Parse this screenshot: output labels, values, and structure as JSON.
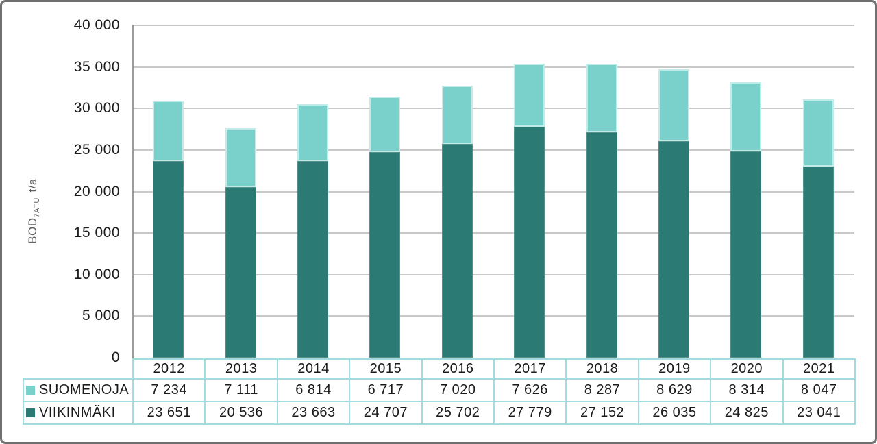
{
  "chart_data": {
    "type": "bar",
    "stacked": true,
    "categories": [
      "2012",
      "2013",
      "2014",
      "2015",
      "2016",
      "2017",
      "2018",
      "2019",
      "2020",
      "2021"
    ],
    "series": [
      {
        "name": "SUOMENOJA",
        "color": "#7ad1cb",
        "values": [
          7234,
          7111,
          6814,
          6717,
          7020,
          7626,
          8287,
          8629,
          8314,
          8047
        ],
        "display": [
          "7 234",
          "7 111",
          "6 814",
          "6 717",
          "7 020",
          "7 626",
          "8 287",
          "8 629",
          "8 314",
          "8 047"
        ]
      },
      {
        "name": "VIIKINMÄKI",
        "color": "#2b7a73",
        "values": [
          23651,
          20536,
          23663,
          24707,
          25702,
          27779,
          27152,
          26035,
          24825,
          23041
        ],
        "display": [
          "23 651",
          "20 536",
          "23 663",
          "24 707",
          "25 702",
          "27 779",
          "27 152",
          "26 035",
          "24 825",
          "23 041"
        ]
      }
    ],
    "stack_order_bottom_to_top": [
      "VIIKINMÄKI",
      "SUOMENOJA"
    ],
    "ylabel_prefix": "BOD",
    "ylabel_sub": "7ATU",
    "ylabel_suffix": "t/a",
    "ylim": [
      0,
      40000
    ],
    "ytick_step": 5000,
    "yticks": [
      "0",
      "5 000",
      "10 000",
      "15 000",
      "20 000",
      "25 000",
      "30 000",
      "35 000",
      "40 000"
    ],
    "grid": "horizontal",
    "legend_position": "table-left"
  },
  "colors": {
    "suomenoja_fill": "#7ad1cb",
    "suomenoja_edge": "#c2ebe8",
    "viikinmaki_fill": "#2b7a73",
    "gridline": "#c9c9c9",
    "axis_line": "#9b9b9b",
    "table_border": "#a3dce0",
    "tick_text": "#1c1c1c",
    "table_text": "#1a1a1a",
    "axis_title_text": "#5f5f5f",
    "frame_border": "#6e6e6e"
  }
}
